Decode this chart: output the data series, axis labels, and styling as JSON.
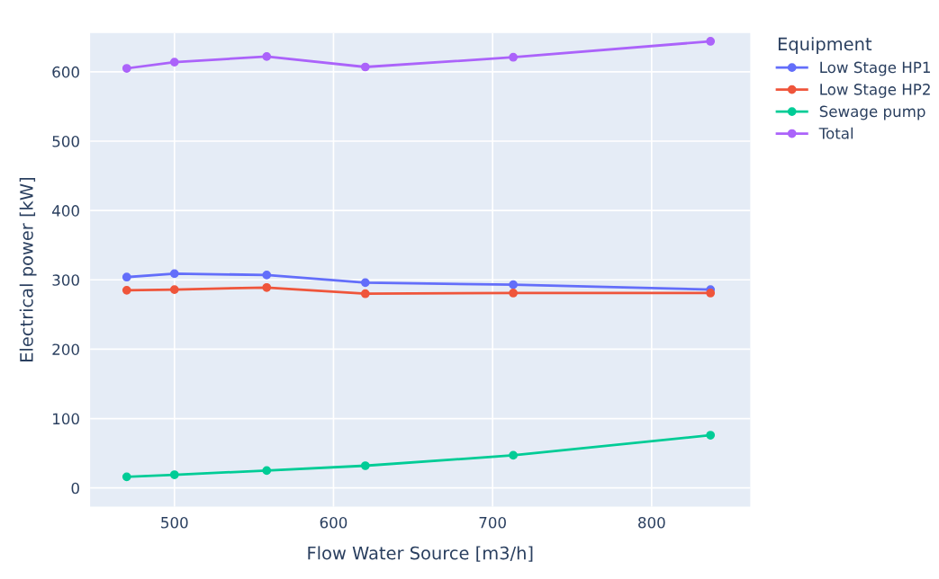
{
  "chart_data": {
    "type": "line",
    "xlabel": "Flow Water Source [m3/h]",
    "ylabel": "Electrical power [kW]",
    "legend_title": "Equipment",
    "x": [
      470,
      500,
      558,
      620,
      713,
      837
    ],
    "series": [
      {
        "name": "Low Stage HP1",
        "color": "#636efa",
        "values": [
          304,
          309,
          307,
          296,
          293,
          286
        ]
      },
      {
        "name": "Low Stage HP2",
        "color": "#ef553b",
        "values": [
          285,
          286,
          289,
          280,
          281,
          281
        ]
      },
      {
        "name": "Sewage pump",
        "color": "#00cc96",
        "values": [
          16,
          19,
          25,
          32,
          47,
          76
        ]
      },
      {
        "name": "Total",
        "color": "#ab63fa",
        "values": [
          605,
          614,
          622,
          607,
          621,
          644
        ]
      }
    ],
    "xlim": [
      447,
      862
    ],
    "ylim": [
      -27,
      656
    ],
    "xticks": [
      500,
      600,
      700,
      800
    ],
    "yticks": [
      0,
      100,
      200,
      300,
      400,
      500,
      600
    ],
    "grid": true,
    "legend": "right",
    "marker": "circle",
    "line_style": "solid"
  }
}
